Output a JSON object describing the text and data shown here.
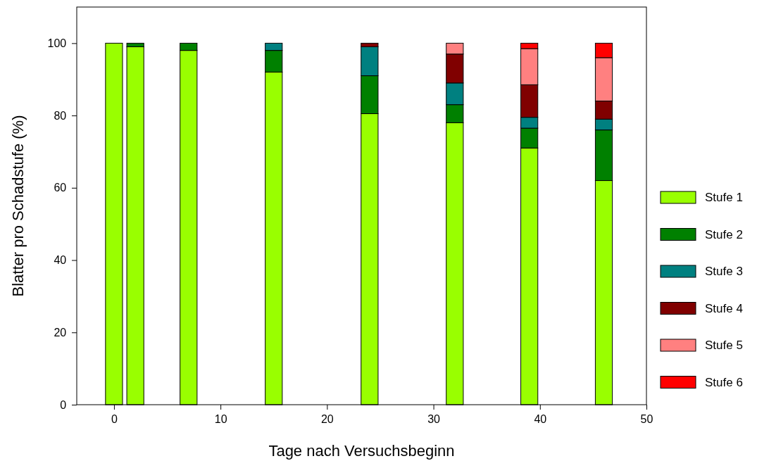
{
  "chart_data": {
    "type": "bar",
    "stacked": true,
    "xlabel": "Tage nach Versuchsbeginn",
    "ylabel": "Blatter pro Schadstufe (%)",
    "x": [
      0,
      2,
      7,
      15,
      24,
      32,
      39,
      46
    ],
    "series": [
      {
        "name": "Stufe 1",
        "color": "#99ff00",
        "values": [
          100,
          99,
          98,
          92,
          80.5,
          78,
          71,
          62
        ]
      },
      {
        "name": "Stufe 2",
        "color": "#008000",
        "values": [
          null,
          1,
          2,
          6,
          10.5,
          5,
          5.5,
          14
        ]
      },
      {
        "name": "Stufe 3",
        "color": "#008080",
        "values": [
          null,
          null,
          null,
          2,
          8,
          6,
          3,
          3
        ]
      },
      {
        "name": "Stufe 4",
        "color": "#800000",
        "values": [
          null,
          null,
          null,
          null,
          1,
          8,
          9,
          5
        ]
      },
      {
        "name": "Stufe 5",
        "color": "#ff8080",
        "values": [
          null,
          null,
          null,
          null,
          null,
          3,
          10,
          12
        ]
      },
      {
        "name": "Stufe 6",
        "color": "#ff0000",
        "values": [
          null,
          null,
          null,
          null,
          null,
          null,
          1.5,
          4
        ]
      }
    ],
    "xlim": [
      -3.5,
      50
    ],
    "xticks": [
      0,
      10,
      20,
      30,
      40,
      50
    ],
    "ylim": [
      0,
      110
    ],
    "yticks": [
      0,
      20,
      40,
      60,
      80,
      100
    ],
    "legend": "right"
  }
}
